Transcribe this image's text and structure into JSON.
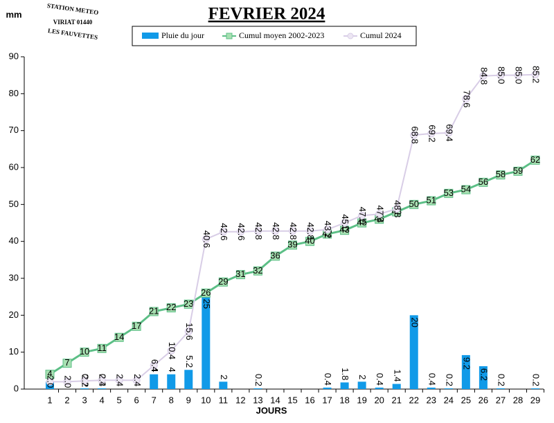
{
  "logo": {
    "top": "STATION METEO",
    "middle": "VIRIAT 01440",
    "bottom": "LES FAUVETTES"
  },
  "chart_data": {
    "type": "bar-line",
    "title": "FEVRIER 2024",
    "y_label": "mm",
    "x_label": "JOURS",
    "categories": [
      "1",
      "2",
      "3",
      "4",
      "5",
      "6",
      "7",
      "8",
      "9",
      "10",
      "11",
      "12",
      "13",
      "14",
      "15",
      "16",
      "17",
      "18",
      "19",
      "20",
      "21",
      "22",
      "23",
      "24",
      "25",
      "26",
      "27",
      "28",
      "29"
    ],
    "ylim": [
      0,
      90
    ],
    "yticks": [
      0,
      10,
      20,
      30,
      40,
      50,
      60,
      70,
      80,
      90
    ],
    "series": [
      {
        "name": "Pluie du jour",
        "type": "bar",
        "color": "#119ae8",
        "values": [
          2,
          null,
          0.2,
          0.2,
          null,
          null,
          4,
          4,
          5.2,
          25,
          2,
          null,
          0.2,
          null,
          null,
          null,
          0.4,
          1.8,
          2,
          0.4,
          1.4,
          20,
          0.4,
          0.2,
          9.2,
          6.2,
          0.2,
          null,
          0.2
        ]
      },
      {
        "name": "Cumul moyen 2002-2023",
        "type": "line",
        "color": "#5cbf86",
        "marker": "square",
        "marker_color": "#a8e0b2",
        "values": [
          4,
          7,
          10,
          11,
          14,
          17,
          21,
          22,
          23,
          26,
          29,
          31,
          32,
          36,
          39,
          40,
          42,
          43,
          45,
          46,
          48,
          50,
          51,
          53,
          54,
          56,
          58,
          59,
          62
        ]
      },
      {
        "name": "Cumul 2024",
        "type": "line",
        "color": "#d8cde6",
        "marker": "circle",
        "marker_color": "#ece6f3",
        "values": [
          2,
          2,
          2.2,
          2.4,
          2.4,
          2.4,
          6.4,
          10.4,
          15.6,
          40.6,
          42.6,
          42.6,
          42.8,
          42.8,
          42.8,
          42.8,
          43.2,
          45,
          47,
          47.4,
          48.8,
          68.8,
          69.2,
          69.4,
          78.6,
          84.8,
          85,
          85,
          85.2
        ],
        "value_labels": [
          "2.0",
          "2.0",
          "2.2",
          "2.4",
          "2.4",
          "2.4",
          "6.4",
          "10.4",
          "15.6",
          "40.6",
          "42.6",
          "42.6",
          "42.8",
          "42.8",
          "42.8",
          "42.8",
          "43.2",
          "45.0",
          "47.0",
          "47.4",
          "48.8",
          "68.8",
          "69.2",
          "69.4",
          "78.6",
          "84.8",
          "85.0",
          "85.0",
          "85.2"
        ]
      }
    ]
  }
}
